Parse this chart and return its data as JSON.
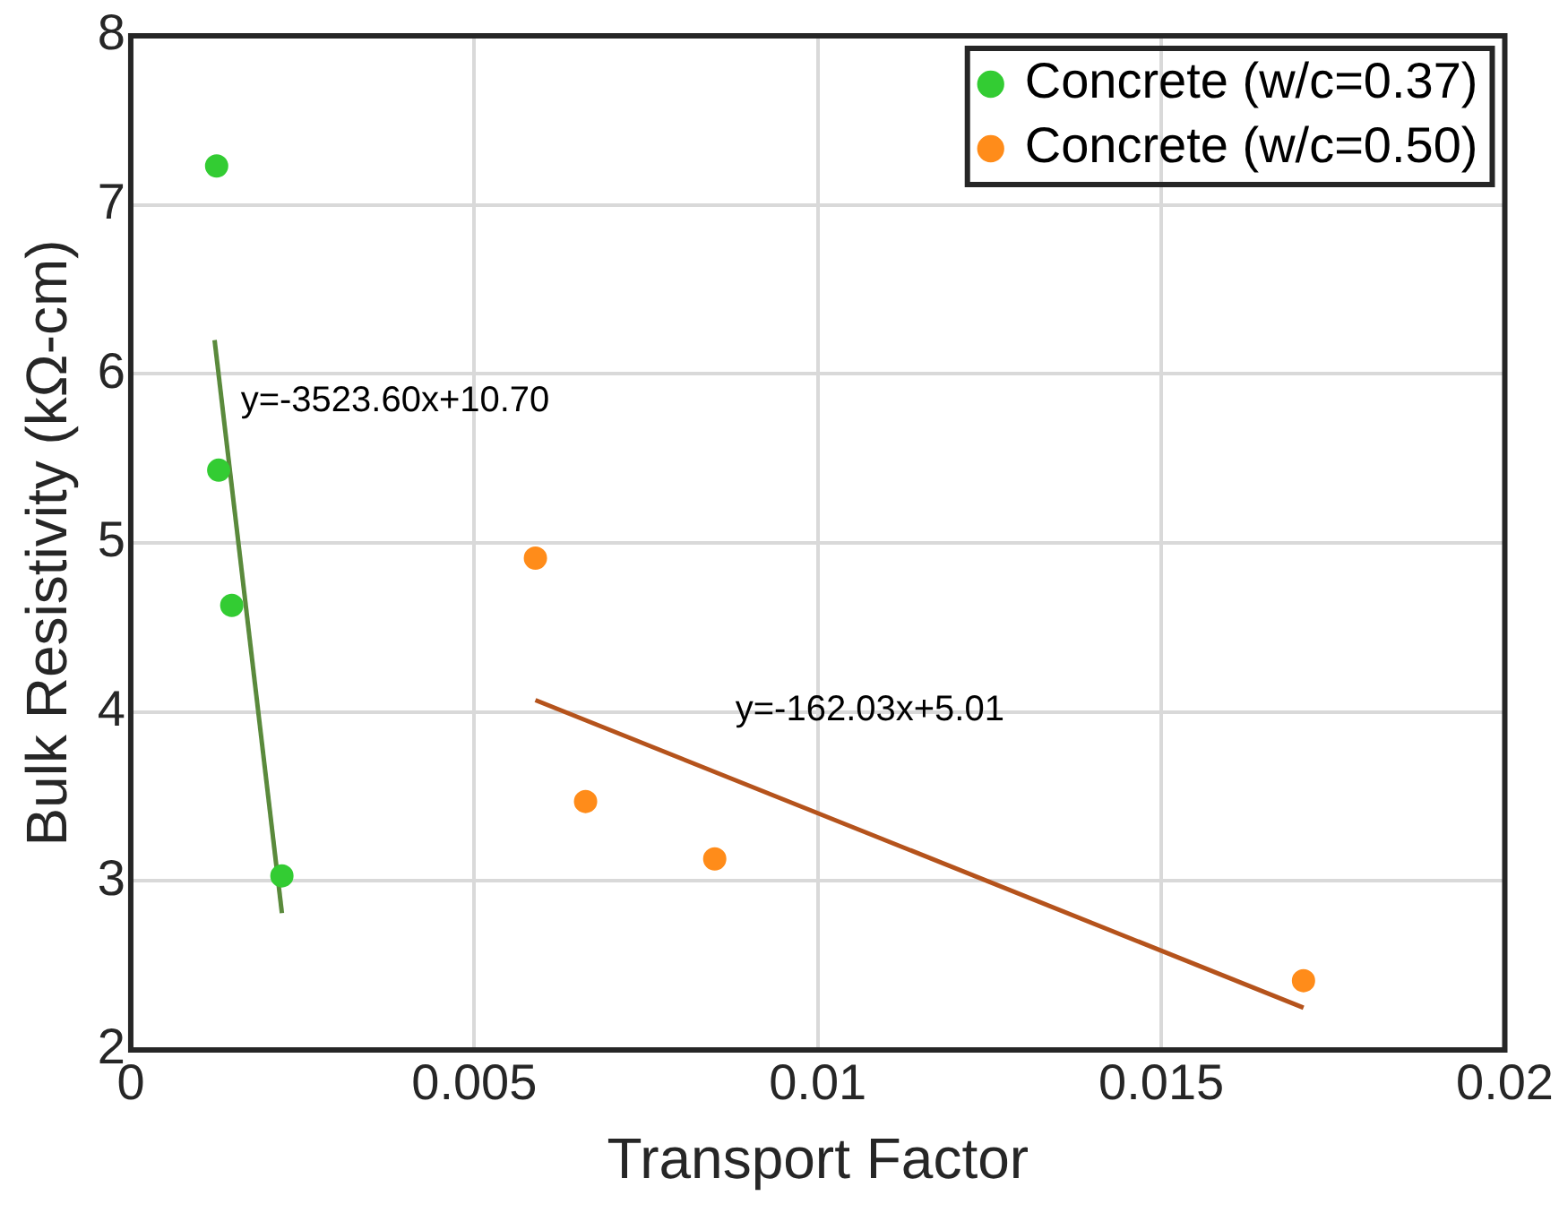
{
  "chart_data": {
    "type": "scatter",
    "xlabel": "Transport Factor",
    "ylabel": "Bulk Resistivity (kΩ-cm)",
    "xlim": [
      0,
      0.02
    ],
    "xticks": [
      0,
      0.005,
      0.01,
      0.015,
      0.02
    ],
    "ylim": [
      2,
      8
    ],
    "yticks": [
      2,
      3,
      4,
      5,
      6,
      7,
      8
    ],
    "grid": true,
    "legend": "top right",
    "marker": "circle",
    "series": [
      {
        "name": "Concrete (w/c=0.37)",
        "color": "#33cc33",
        "x": [
          0.00125,
          0.00128,
          0.00147,
          0.0022
        ],
        "values": [
          7.23,
          5.43,
          4.63,
          3.03
        ]
      },
      {
        "name": "Concrete (w/c=0.50)",
        "color": "#ff8c1a",
        "x": [
          0.00589,
          0.00662,
          0.0085,
          0.01707
        ],
        "values": [
          4.91,
          3.47,
          3.13,
          2.41
        ]
      },
      {
        "type": "line",
        "color": "#5a8a3c",
        "marker": "none",
        "x": [
          0.00122,
          0.0022
        ],
        "values": [
          6.2,
          2.81
        ]
      },
      {
        "type": "line",
        "color": "#b5531c",
        "marker": "none",
        "x": [
          0.00589,
          0.01707
        ],
        "values": [
          4.07,
          2.25
        ]
      }
    ],
    "annotations": [
      "y=-3523.60x+10.70",
      "y=-162.03x+5.01"
    ]
  }
}
